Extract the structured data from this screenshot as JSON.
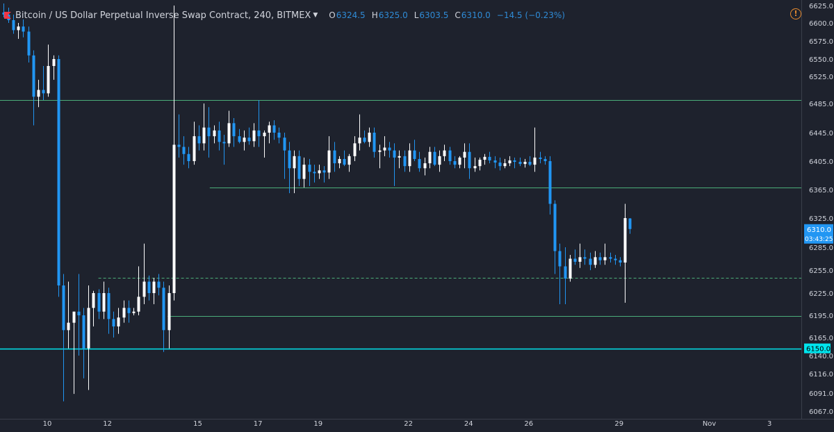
{
  "header": {
    "title": "Bitcoin / US Dollar Perpetual Inverse Swap Contract, 240, BITMEX",
    "ohlc": [
      {
        "key": "O",
        "value": "6324.5"
      },
      {
        "key": "H",
        "value": "6325.0"
      },
      {
        "key": "L",
        "value": "6303.5"
      },
      {
        "key": "C",
        "value": "6310.0"
      }
    ],
    "change": "−14.5 (−0.23%)",
    "flag_icon": "red-flag-icon",
    "warning_icon": "warning-circle-icon"
  },
  "colors": {
    "background": "#1e222d",
    "up_candle": "#ffffff",
    "down_candle": "#2196f3",
    "green_line": "#4caf7a",
    "cyan_line": "#00e5ee",
    "axis_text": "#d1d4dc",
    "price_label_bg": "#2196f3"
  },
  "chart_data": {
    "type": "candlestick",
    "symbol": "Bitcoin / US Dollar Perpetual Inverse Swap Contract",
    "interval": "240",
    "exchange": "BITMEX",
    "y_ticks": [
      "6625.0",
      "6600.0",
      "6575.0",
      "6550.0",
      "6525.0",
      "6485.0",
      "6445.0",
      "6405.0",
      "6365.0",
      "6325.0",
      "6285.0",
      "6255.0",
      "6225.0",
      "6195.0",
      "6165.0",
      "6140.0",
      "6116.0",
      "6091.0",
      "6067.0"
    ],
    "x_ticks": [
      {
        "label": "10",
        "day": 10
      },
      {
        "label": "12",
        "day": 12
      },
      {
        "label": "15",
        "day": 15
      },
      {
        "label": "17",
        "day": 17
      },
      {
        "label": "19",
        "day": 19
      },
      {
        "label": "22",
        "day": 22
      },
      {
        "label": "24",
        "day": 24
      },
      {
        "label": "26",
        "day": 26
      },
      {
        "label": "29",
        "day": 29
      },
      {
        "label": "Nov",
        "day": 32
      },
      {
        "label": "3",
        "day": 34
      }
    ],
    "current_price": {
      "value": 6310.0,
      "label": "6310.0",
      "countdown": "03:43:25"
    },
    "level_label": {
      "value": 6150.0,
      "label": "6150.0"
    },
    "horizontal_lines": [
      {
        "price": 6490,
        "style": "solid",
        "color": "green",
        "full_width": true
      },
      {
        "price": 6368,
        "style": "solid",
        "color": "green",
        "start_day": 15.4
      },
      {
        "price": 6245,
        "style": "dashed",
        "color": "green",
        "start_day": 11.7
      },
      {
        "price": 6194,
        "style": "solid",
        "color": "green",
        "start_day": 14.0
      },
      {
        "price": 6150,
        "style": "solid",
        "color": "cyan",
        "full_width": true
      }
    ],
    "candles": [
      {
        "o": 6615,
        "h": 6628,
        "l": 6608,
        "c": 6612
      },
      {
        "o": 6612,
        "h": 6622,
        "l": 6600,
        "c": 6604
      },
      {
        "o": 6604,
        "h": 6612,
        "l": 6585,
        "c": 6590
      },
      {
        "o": 6590,
        "h": 6600,
        "l": 6578,
        "c": 6595
      },
      {
        "o": 6595,
        "h": 6605,
        "l": 6580,
        "c": 6588
      },
      {
        "o": 6588,
        "h": 6595,
        "l": 6545,
        "c": 6555
      },
      {
        "o": 6555,
        "h": 6562,
        "l": 6455,
        "c": 6495
      },
      {
        "o": 6495,
        "h": 6520,
        "l": 6480,
        "c": 6505
      },
      {
        "o": 6505,
        "h": 6540,
        "l": 6490,
        "c": 6500
      },
      {
        "o": 6500,
        "h": 6570,
        "l": 6495,
        "c": 6540
      },
      {
        "o": 6540,
        "h": 6555,
        "l": 6520,
        "c": 6550
      },
      {
        "o": 6550,
        "h": 6555,
        "l": 6220,
        "c": 6235
      },
      {
        "o": 6235,
        "h": 6250,
        "l": 6080,
        "c": 6175
      },
      {
        "o": 6175,
        "h": 6240,
        "l": 6150,
        "c": 6185
      },
      {
        "o": 6185,
        "h": 6200,
        "l": 6090,
        "c": 6200
      },
      {
        "o": 6200,
        "h": 6250,
        "l": 6140,
        "c": 6195
      },
      {
        "o": 6195,
        "h": 6205,
        "l": 6110,
        "c": 6150
      },
      {
        "o": 6150,
        "h": 6235,
        "l": 6095,
        "c": 6205
      },
      {
        "o": 6205,
        "h": 6228,
        "l": 6180,
        "c": 6225
      },
      {
        "o": 6225,
        "h": 6230,
        "l": 6190,
        "c": 6200
      },
      {
        "o": 6200,
        "h": 6240,
        "l": 6190,
        "c": 6225
      },
      {
        "o": 6225,
        "h": 6232,
        "l": 6170,
        "c": 6190
      },
      {
        "o": 6190,
        "h": 6200,
        "l": 6165,
        "c": 6180
      },
      {
        "o": 6180,
        "h": 6205,
        "l": 6170,
        "c": 6192
      },
      {
        "o": 6192,
        "h": 6215,
        "l": 6185,
        "c": 6205
      },
      {
        "o": 6205,
        "h": 6215,
        "l": 6185,
        "c": 6198
      },
      {
        "o": 6198,
        "h": 6205,
        "l": 6195,
        "c": 6200
      },
      {
        "o": 6200,
        "h": 6260,
        "l": 6195,
        "c": 6220
      },
      {
        "o": 6220,
        "h": 6290,
        "l": 6210,
        "c": 6240
      },
      {
        "o": 6240,
        "h": 6248,
        "l": 6215,
        "c": 6225
      },
      {
        "o": 6225,
        "h": 6245,
        "l": 6210,
        "c": 6240
      },
      {
        "o": 6240,
        "h": 6250,
        "l": 6222,
        "c": 6232
      },
      {
        "o": 6232,
        "h": 6240,
        "l": 6145,
        "c": 6175
      },
      {
        "o": 6175,
        "h": 6235,
        "l": 6150,
        "c": 6225
      },
      {
        "o": 6225,
        "h": 6625,
        "l": 6215,
        "c": 6428
      },
      {
        "o": 6428,
        "h": 6470,
        "l": 6410,
        "c": 6425
      },
      {
        "o": 6425,
        "h": 6440,
        "l": 6400,
        "c": 6415
      },
      {
        "o": 6415,
        "h": 6425,
        "l": 6395,
        "c": 6405
      },
      {
        "o": 6405,
        "h": 6460,
        "l": 6400,
        "c": 6440
      },
      {
        "o": 6440,
        "h": 6455,
        "l": 6420,
        "c": 6430
      },
      {
        "o": 6430,
        "h": 6485,
        "l": 6420,
        "c": 6452
      },
      {
        "o": 6452,
        "h": 6480,
        "l": 6410,
        "c": 6440
      },
      {
        "o": 6440,
        "h": 6455,
        "l": 6430,
        "c": 6448
      },
      {
        "o": 6448,
        "h": 6460,
        "l": 6420,
        "c": 6432
      },
      {
        "o": 6432,
        "h": 6442,
        "l": 6400,
        "c": 6430
      },
      {
        "o": 6430,
        "h": 6475,
        "l": 6425,
        "c": 6458
      },
      {
        "o": 6458,
        "h": 6465,
        "l": 6425,
        "c": 6440
      },
      {
        "o": 6440,
        "h": 6450,
        "l": 6430,
        "c": 6432
      },
      {
        "o": 6432,
        "h": 6448,
        "l": 6420,
        "c": 6438
      },
      {
        "o": 6438,
        "h": 6452,
        "l": 6428,
        "c": 6433
      },
      {
        "o": 6433,
        "h": 6458,
        "l": 6425,
        "c": 6448
      },
      {
        "o": 6448,
        "h": 6490,
        "l": 6425,
        "c": 6440
      },
      {
        "o": 6440,
        "h": 6448,
        "l": 6410,
        "c": 6445
      },
      {
        "o": 6445,
        "h": 6460,
        "l": 6430,
        "c": 6455
      },
      {
        "o": 6455,
        "h": 6462,
        "l": 6435,
        "c": 6445
      },
      {
        "o": 6445,
        "h": 6452,
        "l": 6430,
        "c": 6438
      },
      {
        "o": 6438,
        "h": 6445,
        "l": 6380,
        "c": 6420
      },
      {
        "o": 6420,
        "h": 6432,
        "l": 6360,
        "c": 6395
      },
      {
        "o": 6395,
        "h": 6420,
        "l": 6360,
        "c": 6412
      },
      {
        "o": 6412,
        "h": 6420,
        "l": 6370,
        "c": 6380
      },
      {
        "o": 6380,
        "h": 6410,
        "l": 6368,
        "c": 6400
      },
      {
        "o": 6400,
        "h": 6408,
        "l": 6370,
        "c": 6390
      },
      {
        "o": 6390,
        "h": 6400,
        "l": 6375,
        "c": 6388
      },
      {
        "o": 6388,
        "h": 6400,
        "l": 6380,
        "c": 6392
      },
      {
        "o": 6392,
        "h": 6398,
        "l": 6375,
        "c": 6389
      },
      {
        "o": 6389,
        "h": 6440,
        "l": 6380,
        "c": 6420
      },
      {
        "o": 6420,
        "h": 6432,
        "l": 6390,
        "c": 6402
      },
      {
        "o": 6402,
        "h": 6412,
        "l": 6395,
        "c": 6408
      },
      {
        "o": 6408,
        "h": 6420,
        "l": 6398,
        "c": 6400
      },
      {
        "o": 6400,
        "h": 6415,
        "l": 6390,
        "c": 6412
      },
      {
        "o": 6412,
        "h": 6440,
        "l": 6405,
        "c": 6430
      },
      {
        "o": 6430,
        "h": 6470,
        "l": 6420,
        "c": 6438
      },
      {
        "o": 6438,
        "h": 6448,
        "l": 6430,
        "c": 6432
      },
      {
        "o": 6432,
        "h": 6452,
        "l": 6425,
        "c": 6445
      },
      {
        "o": 6445,
        "h": 6452,
        "l": 6410,
        "c": 6418
      },
      {
        "o": 6418,
        "h": 6428,
        "l": 6395,
        "c": 6420
      },
      {
        "o": 6420,
        "h": 6440,
        "l": 6412,
        "c": 6424
      },
      {
        "o": 6424,
        "h": 6432,
        "l": 6410,
        "c": 6420
      },
      {
        "o": 6420,
        "h": 6430,
        "l": 6370,
        "c": 6410
      },
      {
        "o": 6410,
        "h": 6420,
        "l": 6395,
        "c": 6412
      },
      {
        "o": 6412,
        "h": 6420,
        "l": 6390,
        "c": 6398
      },
      {
        "o": 6398,
        "h": 6430,
        "l": 6390,
        "c": 6420
      },
      {
        "o": 6420,
        "h": 6435,
        "l": 6405,
        "c": 6408
      },
      {
        "o": 6408,
        "h": 6418,
        "l": 6390,
        "c": 6395
      },
      {
        "o": 6395,
        "h": 6410,
        "l": 6385,
        "c": 6402
      },
      {
        "o": 6402,
        "h": 6425,
        "l": 6395,
        "c": 6418
      },
      {
        "o": 6418,
        "h": 6425,
        "l": 6398,
        "c": 6400
      },
      {
        "o": 6400,
        "h": 6420,
        "l": 6390,
        "c": 6412
      },
      {
        "o": 6412,
        "h": 6428,
        "l": 6405,
        "c": 6420
      },
      {
        "o": 6420,
        "h": 6425,
        "l": 6400,
        "c": 6405
      },
      {
        "o": 6405,
        "h": 6412,
        "l": 6395,
        "c": 6400
      },
      {
        "o": 6400,
        "h": 6412,
        "l": 6395,
        "c": 6410
      },
      {
        "o": 6410,
        "h": 6430,
        "l": 6395,
        "c": 6418
      },
      {
        "o": 6418,
        "h": 6430,
        "l": 6380,
        "c": 6395
      },
      {
        "o": 6395,
        "h": 6410,
        "l": 6390,
        "c": 6398
      },
      {
        "o": 6398,
        "h": 6410,
        "l": 6392,
        "c": 6407
      },
      {
        "o": 6407,
        "h": 6415,
        "l": 6400,
        "c": 6411
      },
      {
        "o": 6411,
        "h": 6418,
        "l": 6402,
        "c": 6406
      },
      {
        "o": 6406,
        "h": 6412,
        "l": 6395,
        "c": 6403
      },
      {
        "o": 6403,
        "h": 6410,
        "l": 6392,
        "c": 6398
      },
      {
        "o": 6398,
        "h": 6408,
        "l": 6395,
        "c": 6402
      },
      {
        "o": 6402,
        "h": 6412,
        "l": 6398,
        "c": 6406
      },
      {
        "o": 6406,
        "h": 6410,
        "l": 6395,
        "c": 6404
      },
      {
        "o": 6404,
        "h": 6410,
        "l": 6398,
        "c": 6401
      },
      {
        "o": 6401,
        "h": 6408,
        "l": 6396,
        "c": 6404
      },
      {
        "o": 6404,
        "h": 6412,
        "l": 6398,
        "c": 6400
      },
      {
        "o": 6400,
        "h": 6452,
        "l": 6390,
        "c": 6410
      },
      {
        "o": 6410,
        "h": 6418,
        "l": 6402,
        "c": 6408
      },
      {
        "o": 6408,
        "h": 6412,
        "l": 6400,
        "c": 6405
      },
      {
        "o": 6405,
        "h": 6412,
        "l": 6330,
        "c": 6345
      },
      {
        "o": 6345,
        "h": 6350,
        "l": 6250,
        "c": 6280
      },
      {
        "o": 6280,
        "h": 6290,
        "l": 6210,
        "c": 6260
      },
      {
        "o": 6260,
        "h": 6285,
        "l": 6210,
        "c": 6244
      },
      {
        "o": 6244,
        "h": 6275,
        "l": 6240,
        "c": 6270
      },
      {
        "o": 6270,
        "h": 6282,
        "l": 6262,
        "c": 6266
      },
      {
        "o": 6266,
        "h": 6290,
        "l": 6258,
        "c": 6272
      },
      {
        "o": 6272,
        "h": 6282,
        "l": 6262,
        "c": 6270
      },
      {
        "o": 6270,
        "h": 6278,
        "l": 6255,
        "c": 6262
      },
      {
        "o": 6262,
        "h": 6280,
        "l": 6258,
        "c": 6272
      },
      {
        "o": 6272,
        "h": 6278,
        "l": 6262,
        "c": 6268
      },
      {
        "o": 6268,
        "h": 6290,
        "l": 6262,
        "c": 6272
      },
      {
        "o": 6272,
        "h": 6278,
        "l": 6265,
        "c": 6270
      },
      {
        "o": 6270,
        "h": 6275,
        "l": 6262,
        "c": 6268
      },
      {
        "o": 6268,
        "h": 6272,
        "l": 6260,
        "c": 6265
      },
      {
        "o": 6265,
        "h": 6345,
        "l": 6212,
        "c": 6325
      },
      {
        "o": 6324.5,
        "h": 6325,
        "l": 6303.5,
        "c": 6310
      }
    ]
  }
}
